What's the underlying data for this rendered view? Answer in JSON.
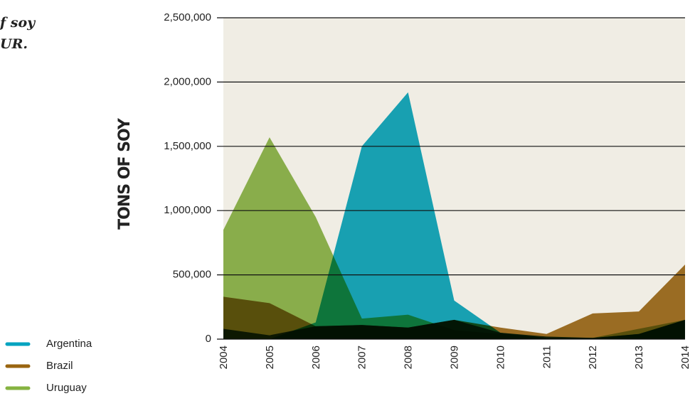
{
  "chart_data": {
    "type": "area",
    "title_lines": [
      "f soy",
      "UR."
    ],
    "y_label": "TONS OF SOY",
    "categories": [
      "2004",
      "2005",
      "2006",
      "2007",
      "2008",
      "2009",
      "2010",
      "2011",
      "2012",
      "2013",
      "2014"
    ],
    "series": [
      {
        "name": "Uruguay",
        "color": "#86b341",
        "values": [
          850000,
          1570000,
          950000,
          160000,
          190000,
          70000,
          40000,
          10000,
          10000,
          80000,
          150000
        ]
      },
      {
        "name": "Argentina",
        "color": "#00a3c0",
        "values": [
          0,
          0,
          130000,
          1500000,
          1920000,
          300000,
          50000,
          10000,
          10000,
          40000,
          150000
        ]
      },
      {
        "name": "Brazil",
        "color": "#9a6510",
        "values": [
          330000,
          280000,
          100000,
          110000,
          90000,
          150000,
          90000,
          40000,
          200000,
          215000,
          580000
        ]
      },
      {
        "color": "#0b3a10",
        "values": [
          80000,
          30000,
          100000,
          110000,
          90000,
          150000,
          50000,
          20000,
          10000,
          40000,
          150000
        ]
      }
    ],
    "legend_order": [
      1,
      2,
      0
    ],
    "ylim": [
      0,
      2500000
    ],
    "yticks": [
      0,
      {
        "value": 500000,
        "label": "500,000"
      },
      {
        "value": 1000000,
        "label": "1,000,000"
      },
      {
        "value": 1500000,
        "label": "1,500,000"
      },
      {
        "value": 2000000,
        "label": "2,000,000"
      },
      {
        "value": 2500000,
        "label": "2,500,000"
      }
    ],
    "grid": true,
    "plot_background": "#f0ede4"
  }
}
